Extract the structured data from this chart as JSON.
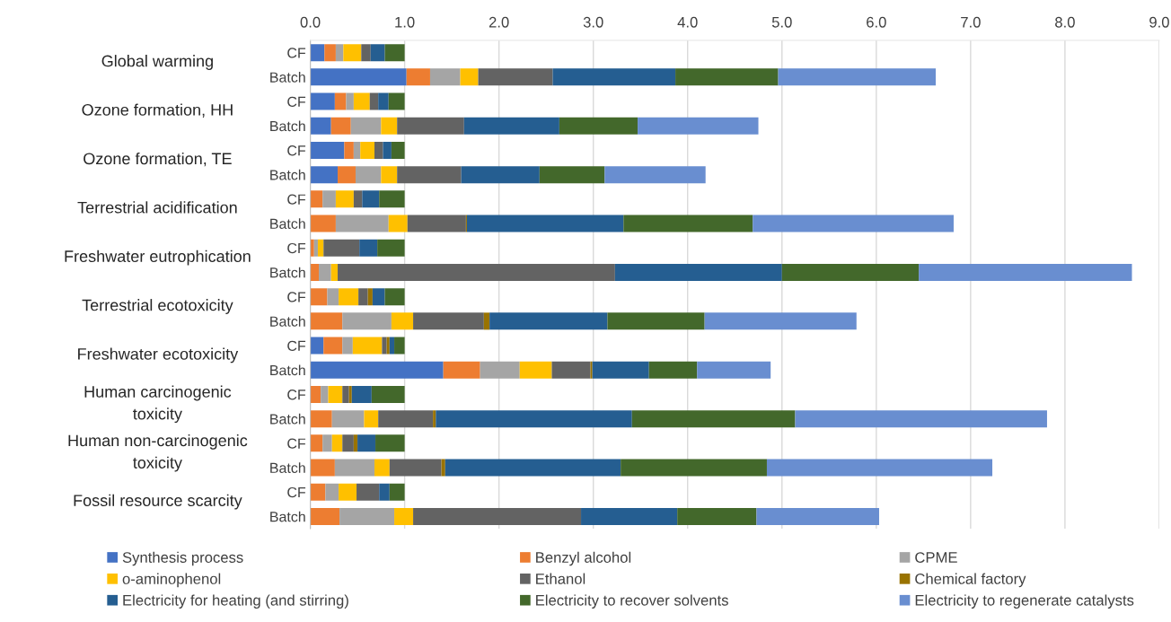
{
  "chart_data": {
    "type": "bar",
    "orientation": "horizontal",
    "stacked": true,
    "categories": [
      "CF",
      "Batch",
      "CF",
      "Batch",
      "CF",
      "Batch",
      "CF",
      "Batch",
      "CF",
      "Batch",
      "CF",
      "Batch",
      "CF",
      "Batch",
      "CF",
      "Batch",
      "CF",
      "Batch",
      "CF",
      "Batch"
    ],
    "annotations": [
      "Global warming",
      "Ozone formation, HH",
      "Ozone formation, TE",
      "Terrestrial acidification",
      "Freshwater eutrophication",
      "Terrestrial ecotoxicity",
      "Freshwater ecotoxicity",
      "Human carcinogenic\ntoxicity",
      "Human non-carcinogenic\ntoxicity",
      "Fossil resource scarcity"
    ],
    "series": [
      {
        "name": "Synthesis process",
        "color": "#4472c4",
        "values": [
          0.15,
          1.02,
          0.26,
          0.22,
          0.36,
          0.29,
          0,
          0,
          0,
          0,
          0,
          0,
          0.14,
          1.41,
          0,
          0,
          0,
          0,
          0,
          0
        ]
      },
      {
        "name": "Benzyl alcohol",
        "color": "#ed7d31",
        "values": [
          0.12,
          0.25,
          0.12,
          0.21,
          0.1,
          0.19,
          0.13,
          0.27,
          0.04,
          0.09,
          0.18,
          0.34,
          0.2,
          0.39,
          0.11,
          0.23,
          0.13,
          0.26,
          0.16,
          0.31
        ]
      },
      {
        "name": "CPME",
        "color": "#a5a5a5",
        "values": [
          0.08,
          0.32,
          0.08,
          0.32,
          0.07,
          0.27,
          0.14,
          0.56,
          0.04,
          0.13,
          0.12,
          0.52,
          0.11,
          0.42,
          0.08,
          0.34,
          0.1,
          0.42,
          0.14,
          0.58
        ]
      },
      {
        "name": "o-aminophenol",
        "color": "#ffc000",
        "values": [
          0.19,
          0.19,
          0.17,
          0.17,
          0.15,
          0.17,
          0.19,
          0.2,
          0.06,
          0.07,
          0.21,
          0.23,
          0.31,
          0.34,
          0.15,
          0.15,
          0.11,
          0.16,
          0.19,
          0.2
        ]
      },
      {
        "name": "Ethanol",
        "color": "#636363",
        "values": [
          0.1,
          0.79,
          0.09,
          0.71,
          0.09,
          0.68,
          0.09,
          0.62,
          0.38,
          2.94,
          0.1,
          0.75,
          0.05,
          0.41,
          0.07,
          0.58,
          0.12,
          0.55,
          0.24,
          1.78
        ]
      },
      {
        "name": "Chemical factory",
        "color": "#997300",
        "values": [
          0,
          0,
          0,
          0,
          0,
          0,
          0,
          0.01,
          0,
          0,
          0.05,
          0.06,
          0.03,
          0.02,
          0.03,
          0.03,
          0.04,
          0.04,
          0,
          0
        ]
      },
      {
        "name": "Electricity for heating (and stirring)",
        "color": "#255e91",
        "values": [
          0.15,
          1.3,
          0.11,
          1.01,
          0.09,
          0.83,
          0.18,
          1.66,
          0.19,
          1.77,
          0.13,
          1.25,
          0.05,
          0.6,
          0.21,
          2.08,
          0.19,
          1.86,
          0.11,
          1.02
        ]
      },
      {
        "name": "Electricity to recover solvents",
        "color": "#43682b",
        "values": [
          0.21,
          1.09,
          0.17,
          0.83,
          0.14,
          0.69,
          0.27,
          1.37,
          0.29,
          1.45,
          0.21,
          1.03,
          0.11,
          0.51,
          0.35,
          1.73,
          0.31,
          1.55,
          0.16,
          0.84
        ]
      },
      {
        "name": "Electricity to regenerate catalysts",
        "color": "#698ed0",
        "values": [
          0,
          1.67,
          0,
          1.28,
          0,
          1.07,
          0,
          2.13,
          0,
          2.26,
          0,
          1.61,
          0,
          0.78,
          0,
          2.67,
          0,
          2.39,
          0,
          1.3
        ]
      }
    ],
    "xlim": [
      0,
      9
    ],
    "xticks": [
      {
        "value": 0,
        "label": "0.0"
      },
      {
        "value": 1,
        "label": "1.0"
      },
      {
        "value": 2,
        "label": "2.0"
      },
      {
        "value": 3,
        "label": "3.0"
      },
      {
        "value": 4,
        "label": "4.0"
      },
      {
        "value": 5,
        "label": "5.0"
      },
      {
        "value": 6,
        "label": "6.0"
      },
      {
        "value": 7,
        "label": "7.0"
      },
      {
        "value": 8,
        "label": "8.0"
      },
      {
        "value": 9,
        "label": "9.0"
      }
    ],
    "grid": "x",
    "legend": "bottom"
  }
}
